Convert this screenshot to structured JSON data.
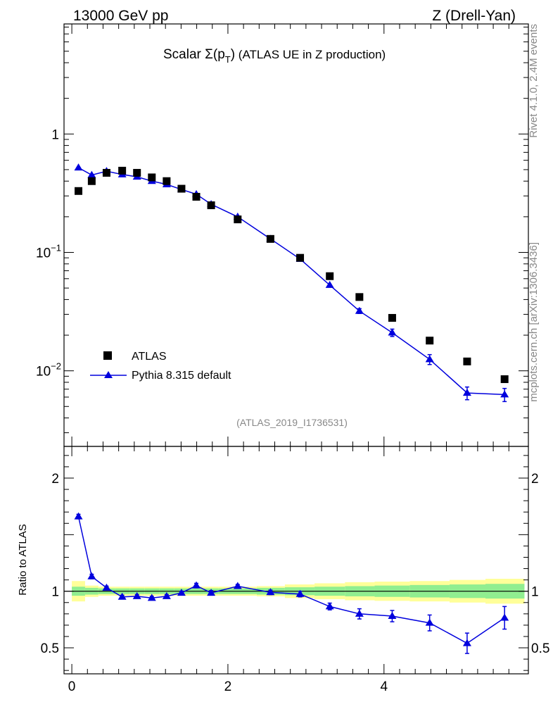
{
  "header": {
    "left": "13000 GeV pp",
    "right": "Z (Drell-Yan)"
  },
  "side": {
    "rivet": "Rivet 4.1.0,  2.4M events",
    "mcplots": "mcplots.cern.ch [arXiv:1306.3436]"
  },
  "chart_data": [
    {
      "type": "scatter",
      "title_prefix": "Scalar ",
      "title_sigma": "Σ(p",
      "title_sub": "T",
      "title_close": ")",
      "title_rest": " (ATLAS UE in Z production)",
      "analysis_id": "(ATLAS_2019_I1736531)",
      "yscale": "log",
      "ylim": [
        0.0023,
        8.5
      ],
      "xlim": [
        -0.1,
        5.85
      ],
      "yticks": [
        {
          "v": 1,
          "label": "1"
        },
        {
          "v": 0.1,
          "label": "10",
          "exp": "−1"
        },
        {
          "v": 0.01,
          "label": "10",
          "exp": "−2"
        }
      ],
      "legend": {
        "placement": "bottom-left",
        "data_label": "ATLAS",
        "mc_label": "Pythia 8.315 default"
      },
      "x": [
        0.085,
        0.255,
        0.445,
        0.645,
        0.835,
        1.025,
        1.215,
        1.405,
        1.595,
        1.785,
        2.125,
        2.545,
        2.925,
        3.305,
        3.685,
        4.105,
        4.585,
        5.065,
        5.545
      ],
      "series": [
        {
          "name": "ATLAS",
          "values": [
            0.33,
            0.4,
            0.47,
            0.49,
            0.47,
            0.43,
            0.4,
            0.345,
            0.295,
            0.25,
            0.19,
            0.13,
            0.09,
            0.063,
            0.042,
            0.028,
            0.018,
            0.012,
            0.0085
          ]
        },
        {
          "name": "Pythia 8.315 default",
          "values": [
            0.52,
            0.45,
            0.485,
            0.455,
            0.435,
            0.4,
            0.375,
            0.34,
            0.31,
            0.255,
            0.2,
            0.13,
            0.088,
            0.053,
            0.032,
            0.021,
            0.0125,
            0.0065,
            0.0063
          ],
          "errors": [
            0,
            0,
            0,
            0,
            0,
            0,
            0,
            0,
            0,
            0,
            0,
            0,
            0,
            0,
            0.0015,
            0.0015,
            0.0012,
            0.0008,
            0.0008
          ]
        }
      ]
    },
    {
      "type": "line",
      "ylabel": "Ratio to ATLAS",
      "ylim": [
        0.27,
        2.28
      ],
      "xlim": [
        -0.1,
        5.85
      ],
      "yticks": [
        {
          "v": 0.5,
          "label": "0.5"
        },
        {
          "v": 1,
          "label": "1"
        },
        {
          "v": 2,
          "label": "2"
        }
      ],
      "xticks": [
        {
          "v": 0,
          "label": "0"
        },
        {
          "v": 2,
          "label": "2"
        },
        {
          "v": 4,
          "label": "4"
        }
      ],
      "bins": [
        0,
        0.17,
        0.34,
        0.55,
        0.74,
        0.93,
        1.12,
        1.31,
        1.5,
        1.69,
        1.88,
        2.37,
        2.73,
        3.11,
        3.5,
        3.88,
        4.33,
        4.84,
        5.3,
        5.8
      ],
      "band_inner": [
        0.04,
        0.03,
        0.025,
        0.025,
        0.025,
        0.025,
        0.025,
        0.025,
        0.025,
        0.025,
        0.025,
        0.03,
        0.035,
        0.04,
        0.045,
        0.05,
        0.055,
        0.06,
        0.065
      ],
      "band_outer": [
        0.09,
        0.05,
        0.04,
        0.04,
        0.04,
        0.04,
        0.04,
        0.04,
        0.04,
        0.04,
        0.04,
        0.045,
        0.06,
        0.07,
        0.08,
        0.085,
        0.09,
        0.1,
        0.11
      ],
      "x": [
        0.085,
        0.255,
        0.445,
        0.645,
        0.835,
        1.025,
        1.215,
        1.405,
        1.595,
        1.785,
        2.125,
        2.545,
        2.925,
        3.305,
        3.685,
        4.105,
        4.585,
        5.065,
        5.545
      ],
      "values": [
        1.66,
        1.13,
        1.03,
        0.95,
        0.955,
        0.94,
        0.955,
        0.985,
        1.05,
        0.985,
        1.045,
        0.99,
        0.975,
        0.865,
        0.8,
        0.78,
        0.72,
        0.54,
        0.765
      ],
      "errors": [
        0.02,
        0.02,
        0.015,
        0.015,
        0.015,
        0.015,
        0.015,
        0.015,
        0.02,
        0.02,
        0.015,
        0.02,
        0.025,
        0.03,
        0.045,
        0.05,
        0.07,
        0.09,
        0.1
      ]
    }
  ],
  "colors": {
    "mc": "#0000dd",
    "data": "#000000",
    "band_inner": "#90ee90",
    "band_outer": "#ffff99",
    "grey": "#888888"
  }
}
